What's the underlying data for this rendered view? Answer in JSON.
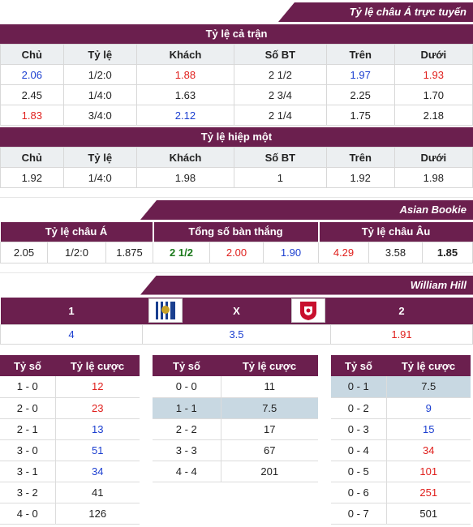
{
  "banners": {
    "asian_live": "Tỷ lệ châu Á trực tuyến",
    "asian_bookie": "Asian Bookie",
    "william_hill": "William Hill"
  },
  "full_match": {
    "title": "Tỷ lệ cả trận",
    "headers": [
      "Chủ",
      "Tỷ lệ",
      "Khách",
      "Số BT",
      "Trên",
      "Dưới"
    ],
    "rows": [
      {
        "cells": [
          "2.06",
          "1/2:0",
          "1.88",
          "2 1/2",
          "1.97",
          "1.93"
        ],
        "colors": [
          "blue",
          "",
          "red",
          "",
          "blue",
          "red"
        ]
      },
      {
        "cells": [
          "2.45",
          "1/4:0",
          "1.63",
          "2 3/4",
          "2.25",
          "1.70"
        ],
        "colors": [
          "",
          "",
          "",
          "",
          "",
          ""
        ]
      },
      {
        "cells": [
          "1.83",
          "3/4:0",
          "2.12",
          "2 1/4",
          "1.75",
          "2.18"
        ],
        "colors": [
          "red",
          "",
          "blue",
          "",
          "",
          ""
        ]
      }
    ]
  },
  "first_half": {
    "title": "Tỷ lệ hiệp một",
    "headers": [
      "Chủ",
      "Tỷ lệ",
      "Khách",
      "Số BT",
      "Trên",
      "Dưới"
    ],
    "rows": [
      {
        "cells": [
          "1.92",
          "1/4:0",
          "1.98",
          "1",
          "1.92",
          "1.98"
        ],
        "colors": [
          "",
          "",
          "",
          "",
          "",
          ""
        ]
      }
    ]
  },
  "bookie": {
    "headers": [
      "Tỷ lệ châu Á",
      "Tổng số bàn thắng",
      "Tỷ lệ châu Âu"
    ],
    "values": [
      {
        "v": "2.05",
        "c": ""
      },
      {
        "v": "1/2:0",
        "c": ""
      },
      {
        "v": "1.875",
        "c": ""
      },
      {
        "v": "2 1/2",
        "c": "green"
      },
      {
        "v": "2.00",
        "c": "red"
      },
      {
        "v": "1.90",
        "c": "blue"
      },
      {
        "v": "4.29",
        "c": "red"
      },
      {
        "v": "3.58",
        "c": ""
      },
      {
        "v": "1.85",
        "c": "bold"
      }
    ]
  },
  "wh": {
    "labels": [
      "1",
      "X",
      "2"
    ],
    "home_logo": "west-brom-crest-icon",
    "away_logo": "liverpool-crest-icon",
    "values": [
      {
        "v": "4",
        "c": "blue"
      },
      {
        "v": "3.5",
        "c": "blue"
      },
      {
        "v": "1.91",
        "c": "red"
      }
    ]
  },
  "correct_score": {
    "header_score": "Tỷ số",
    "header_odds": "Tỷ lệ cược",
    "home": [
      {
        "s": "1 - 0",
        "o": "12",
        "c": "red"
      },
      {
        "s": "2 - 0",
        "o": "23",
        "c": "red"
      },
      {
        "s": "2 - 1",
        "o": "13",
        "c": "blue"
      },
      {
        "s": "3 - 0",
        "o": "51",
        "c": "blue"
      },
      {
        "s": "3 - 1",
        "o": "34",
        "c": "blue"
      },
      {
        "s": "3 - 2",
        "o": "41",
        "c": ""
      },
      {
        "s": "4 - 0",
        "o": "126",
        "c": ""
      }
    ],
    "draw": [
      {
        "s": "0 - 0",
        "o": "11",
        "c": ""
      },
      {
        "s": "1 - 1",
        "o": "7.5",
        "c": "",
        "hl": true
      },
      {
        "s": "2 - 2",
        "o": "17",
        "c": ""
      },
      {
        "s": "3 - 3",
        "o": "67",
        "c": ""
      },
      {
        "s": "4 - 4",
        "o": "201",
        "c": ""
      }
    ],
    "away": [
      {
        "s": "0 - 1",
        "o": "7.5",
        "c": "",
        "hl": true
      },
      {
        "s": "0 - 2",
        "o": "9",
        "c": "blue"
      },
      {
        "s": "0 - 3",
        "o": "15",
        "c": "blue"
      },
      {
        "s": "0 - 4",
        "o": "34",
        "c": "red"
      },
      {
        "s": "0 - 5",
        "o": "101",
        "c": "red"
      },
      {
        "s": "0 - 6",
        "o": "251",
        "c": "red"
      },
      {
        "s": "0 - 7",
        "o": "501",
        "c": ""
      }
    ]
  }
}
